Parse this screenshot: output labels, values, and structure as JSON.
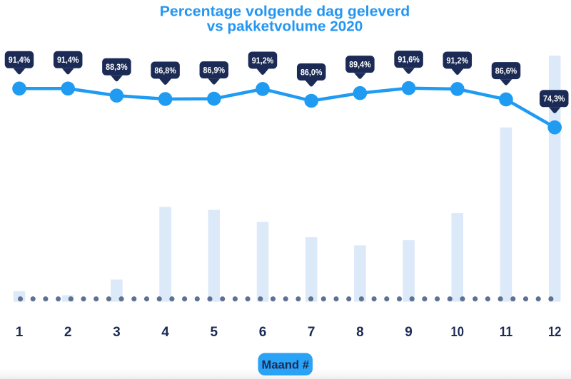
{
  "title": {
    "line1": "Percentage volgende dag geleverd",
    "line2": "vs pakketvolume 2020"
  },
  "x_axis": {
    "label": "Maand #",
    "categories": [
      "1",
      "2",
      "3",
      "4",
      "5",
      "6",
      "7",
      "8",
      "9",
      "10",
      "11",
      "12"
    ]
  },
  "chart_data": {
    "type": "line+bar combo, no y-axis shown",
    "title": "Percentage volgende dag geleverd vs pakketvolume 2020",
    "xlabel": "Maand #",
    "ylabel": "",
    "legend": "none",
    "grid": "off",
    "categories": [
      "1",
      "2",
      "3",
      "4",
      "5",
      "6",
      "7",
      "8",
      "9",
      "10",
      "11",
      "12"
    ],
    "series": [
      {
        "name": "Percentage volgende dag geleverd",
        "type": "line",
        "unit": "%",
        "values": [
          91.4,
          91.4,
          88.3,
          86.8,
          86.9,
          91.2,
          86.0,
          89.4,
          91.6,
          91.2,
          86.6,
          74.3
        ],
        "point_labels": [
          "91,4%",
          "91,4%",
          "88,3%",
          "86,8%",
          "86,9%",
          "91,2%",
          "86,0%",
          "89,4%",
          "91,6%",
          "91,2%",
          "86,6%",
          "74,3%"
        ]
      },
      {
        "name": "Pakketvolume 2020",
        "type": "bar",
        "unit": "relative volume index (no axis labelled, month 12 = 100)",
        "values": [
          4.3,
          2.6,
          9.0,
          38.5,
          37.3,
          32.4,
          26.2,
          22.9,
          25.0,
          36.0,
          70.8,
          100
        ]
      }
    ],
    "baseline_dotted_line": true
  },
  "colors": {
    "title_blue": "#2496f1",
    "line_blue": "#209bf2",
    "badge_blue": "#2aa2f5",
    "navy": "#1b2b55",
    "bar_fill": "#dbe9f8",
    "dot_grey_blue": "#5d7194",
    "label_text": "#ffffff",
    "background": "#ffffff",
    "bottom_fade": "#f0f0f2"
  }
}
